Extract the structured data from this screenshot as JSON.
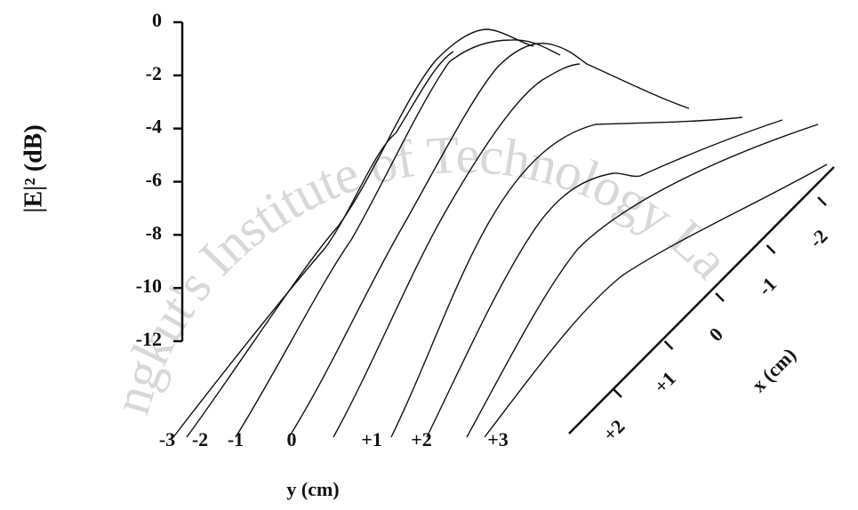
{
  "chart_data": {
    "type": "waterfall",
    "watermark": "ngkut's Institute of Technology La",
    "zlabel": "|E|² (dB)",
    "ylabel": "y (cm)",
    "xlabel": "x (cm)",
    "zticks": [
      0,
      -2,
      -4,
      -6,
      -8,
      -10,
      -12
    ],
    "yticks": [
      -3,
      -2,
      -1,
      0,
      {
        "value": 1,
        "label": "+1"
      },
      {
        "value": 2,
        "label": "+2"
      },
      {
        "value": 3,
        "label": "+3"
      }
    ],
    "xticks": [
      {
        "value": 2,
        "label": "+2"
      },
      {
        "value": 1,
        "label": "+1"
      },
      0,
      -1,
      -2
    ]
  }
}
